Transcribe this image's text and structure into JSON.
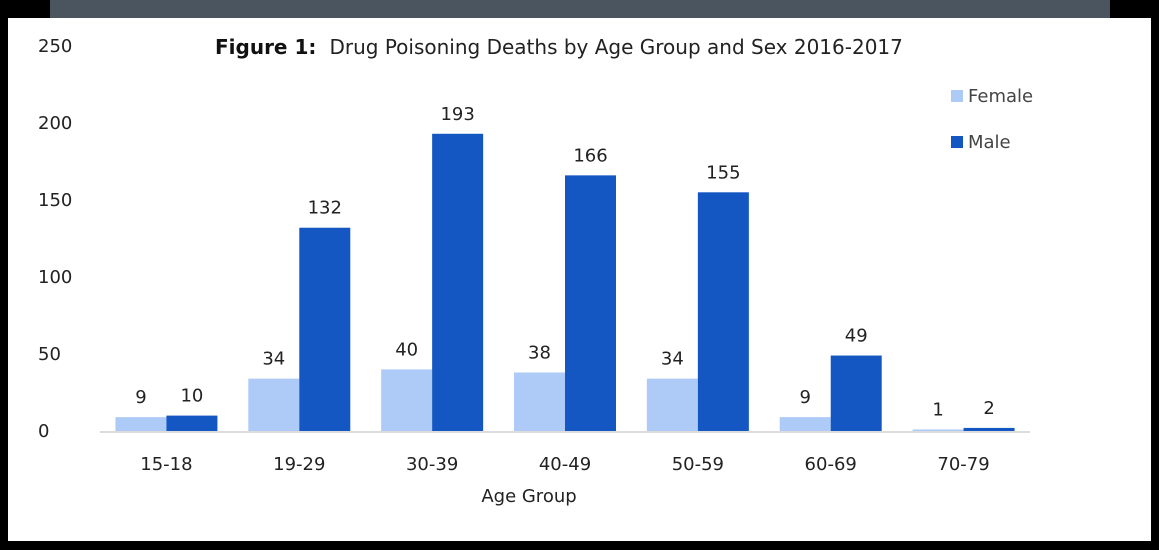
{
  "chart_data": {
    "type": "bar",
    "title_prefix": "Figure 1:",
    "title": "Drug Poisoning Deaths by Age Group and Sex 2016-2017",
    "xlabel": "Age Group",
    "ylabel": "",
    "categories": [
      "15-18",
      "19-29",
      "30-39",
      "40-49",
      "50-59",
      "60-69",
      "70-79"
    ],
    "series": [
      {
        "name": "Female",
        "color": "#aecbf7",
        "values": [
          9,
          34,
          40,
          38,
          34,
          9,
          1
        ]
      },
      {
        "name": "Male",
        "color": "#1457c2",
        "values": [
          10,
          132,
          193,
          166,
          155,
          49,
          2
        ]
      }
    ],
    "ylim": [
      0,
      250
    ],
    "yticks": [
      0,
      50,
      100,
      150,
      200,
      250
    ],
    "grid": false,
    "legend_position": "top-right"
  }
}
